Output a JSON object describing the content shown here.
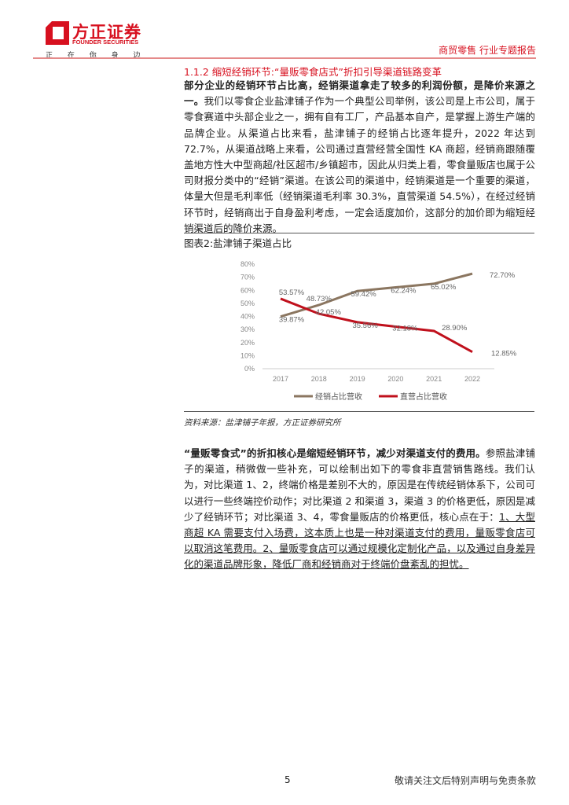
{
  "header": {
    "brand_cn": "方正证券",
    "brand_en": "FOUNDER SECURITIES",
    "slogan": "正 在 你 身 边",
    "report_type": "商贸零售 行业专题报告"
  },
  "section": {
    "title": "1.1.2 缩短经销环节:“量贩零食店式”折扣引导渠道链路变革"
  },
  "para1": {
    "bold": "部分企业的经销环节占比高，经销渠道拿走了较多的利润份额，是降价来源之一。",
    "text": "我们以零食企业盐津铺子作为一个典型公司举例，该公司是上市公司，属于零食赛道中头部企业之一，拥有自有工厂，产品基本自产，是掌握上游生产端的品牌企业。从渠道占比来看，盐津铺子的经销占比逐年提升，2022 年达到 72.7%，从渠道战略上来看，公司通过直营经营全国性 KA 商超，经销商跟随覆盖地方性大中型商超/社区超市/乡镇超市，因此从归类上看，零食量贩店也属于公司财报分类中的“经销”渠道。在该公司的渠道中，经销渠道是一个重要的渠道，体量大但是毛利率低（经销渠道毛利率 30.3%，直营渠道 54.5%），在经过经销环节时，经销商出于自身盈利考虑，一定会适度加价，这部分的加价即为缩短经销渠道后的降价来源。"
  },
  "figure": {
    "title": "图表2:盐津铺子渠道占比",
    "source": "资料来源：盐津铺子年报，方正证券研究所"
  },
  "chart_data": {
    "type": "line",
    "categories": [
      "2017",
      "2018",
      "2019",
      "2020",
      "2021",
      "2022"
    ],
    "series": [
      {
        "name": "经销占比营收",
        "values": [
          39.87,
          48.73,
          59.42,
          62.24,
          65.02,
          72.7
        ],
        "labels": [
          "39.87%",
          "48.73%",
          "59.42%",
          "62.24%",
          "65.02%",
          "72.70%"
        ],
        "color": "#8b7660"
      },
      {
        "name": "直营占比营收",
        "values": [
          53.57,
          42.05,
          35.56,
          32.18,
          28.9,
          12.85
        ],
        "labels": [
          "53.57%",
          "42.05%",
          "35.56%",
          "32.18%",
          "28.90%",
          "12.85%"
        ],
        "color": "#c0101c"
      }
    ],
    "ylim": [
      0,
      80
    ],
    "yticks": [
      "0%",
      "10%",
      "20%",
      "30%",
      "40%",
      "50%",
      "60%",
      "70%",
      "80%"
    ],
    "legend": "bottom",
    "grid": false
  },
  "para2": {
    "bold": "“量贩零食式”的折扣核心是缩短经销环节，减少对渠道支付的费用。",
    "text": "参照盐津铺子的渠道，稍微做一些补充，可以绘制出如下的零食非直营销售路线。我们认为，对比渠道 1、2，终端价格是差别不大的，原因是在传统经销体系下，公司可以进行一些终端控价动作；对比渠道 2 和渠道 3，渠道 3 的价格更低，原因是减少了经销环节；对比渠道 3、4，零食量贩店的价格更低，核心点在于：",
    "underline": "1、大型商超 KA 需要支付入场费，这本质上也是一种对渠道支付的费用，量贩零食店可以取消这笔费用。2、量贩零食店可以通过规模化定制化产品，以及通过自身差异化的渠道品牌形象，降低厂商和经销商对于终端价盘紊乱的担忧。"
  },
  "footer": {
    "page": "5",
    "note": "敬请关注文后特别声明与免责条款"
  }
}
